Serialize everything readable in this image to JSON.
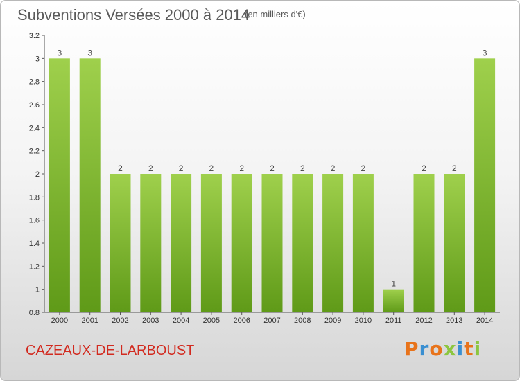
{
  "header": {
    "title": "Subventions Versées 2000 à 2014",
    "subtitle": "(en milliers d'€)"
  },
  "commune": "CAZEAUX-DE-LARBOUST",
  "logo": {
    "text": "Proxiti",
    "colors": [
      "#e8731a",
      "#3a8fd1",
      "#e8731a",
      "#8cc63f",
      "#3a8fd1",
      "#e8731a",
      "#8cc63f"
    ]
  },
  "chart_data": {
    "type": "bar",
    "title": "Subventions Versées 2000 à 2014",
    "subtitle": "(en milliers d'€)",
    "categories": [
      "2000",
      "2001",
      "2002",
      "2003",
      "2004",
      "2005",
      "2006",
      "2007",
      "2008",
      "2009",
      "2010",
      "2011",
      "2012",
      "2013",
      "2014"
    ],
    "values": [
      3,
      3,
      2,
      2,
      2,
      2,
      2,
      2,
      2,
      2,
      2,
      1,
      2,
      2,
      3
    ],
    "ylim": [
      0.8,
      3.2
    ],
    "yticks": [
      0.8,
      1,
      1.2,
      1.4,
      1.6,
      1.8,
      2,
      2.2,
      2.4,
      2.6,
      2.8,
      3,
      3.2
    ],
    "ytick_labels": [
      "0.8",
      "1",
      "1.2",
      "1.4",
      "1.6",
      "1.8",
      "2",
      "2.2",
      "2.4",
      "2.6",
      "2.8",
      "3",
      "3.2"
    ],
    "grid": false,
    "bar_color_top": "#9fd04c",
    "bar_color_bottom": "#5f9a18"
  }
}
